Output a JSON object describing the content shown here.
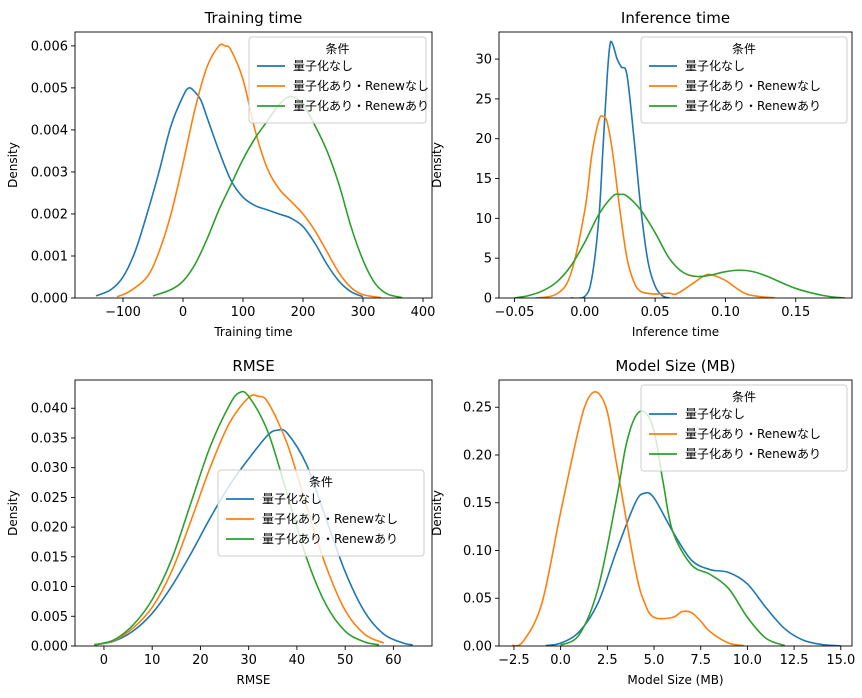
{
  "colors": {
    "series": [
      "#1f77b4",
      "#ff7f0e",
      "#2ca02c"
    ]
  },
  "chart_data": [
    {
      "type": "line",
      "title": "Training time",
      "xlabel": "Training time",
      "ylabel": "Density",
      "xlim": [
        -180,
        415
      ],
      "ylim": [
        0,
        0.00633
      ],
      "xticks": [
        -100,
        0,
        100,
        200,
        300,
        400
      ],
      "xtick_labels": [
        "−100",
        "0",
        "100",
        "200",
        "300",
        "400"
      ],
      "yticks": [
        0,
        0.001,
        0.002,
        0.003,
        0.004,
        0.005,
        0.006
      ],
      "ytick_labels": [
        "0.000",
        "0.001",
        "0.002",
        "0.003",
        "0.004",
        "0.005",
        "0.006"
      ],
      "legend": {
        "title": "条件",
        "placement": "upper-right",
        "labels": [
          "量子化なし",
          "量子化あり・Renewなし",
          "量子化あり・Renewあり"
        ]
      },
      "series": [
        {
          "name": "量子化なし",
          "x": [
            -145,
            -120,
            -100,
            -80,
            -60,
            -40,
            -20,
            0,
            10,
            20,
            30,
            40,
            60,
            80,
            100,
            120,
            140,
            160,
            180,
            200,
            220,
            240,
            260,
            280,
            300
          ],
          "y": [
            5e-05,
            0.0002,
            0.0005,
            0.0011,
            0.002,
            0.003,
            0.0041,
            0.0048,
            0.005,
            0.0049,
            0.0047,
            0.0043,
            0.0035,
            0.0028,
            0.0024,
            0.0022,
            0.0021,
            0.002,
            0.0019,
            0.0017,
            0.0013,
            0.0008,
            0.0004,
            0.00015,
            3e-05
          ]
        },
        {
          "name": "量子化あり・Renewなし",
          "x": [
            -110,
            -90,
            -60,
            -40,
            -20,
            0,
            20,
            40,
            60,
            70,
            80,
            100,
            120,
            140,
            160,
            180,
            200,
            220,
            240,
            260,
            280,
            300,
            330
          ],
          "y": [
            3e-05,
            0.00015,
            0.0005,
            0.0011,
            0.002,
            0.0032,
            0.0045,
            0.0055,
            0.006,
            0.006,
            0.0059,
            0.0052,
            0.004,
            0.0031,
            0.0026,
            0.0023,
            0.002,
            0.0016,
            0.0011,
            0.0006,
            0.00025,
            8e-05,
            1e-05
          ]
        },
        {
          "name": "量子化あり・Renewあり",
          "x": [
            -50,
            -20,
            0,
            20,
            40,
            60,
            80,
            100,
            120,
            140,
            160,
            180,
            200,
            220,
            240,
            260,
            280,
            300,
            320,
            340,
            365
          ],
          "y": [
            5e-05,
            0.0002,
            0.0004,
            0.0008,
            0.0014,
            0.0021,
            0.0027,
            0.0033,
            0.0038,
            0.0042,
            0.0046,
            0.0048,
            0.0046,
            0.0041,
            0.0035,
            0.0027,
            0.0017,
            0.0009,
            0.00035,
            0.0001,
            1e-05
          ]
        }
      ]
    },
    {
      "type": "line",
      "title": "Inference time",
      "xlabel": "Inference time",
      "ylabel": "Density",
      "xlim": [
        -0.061,
        0.19
      ],
      "ylim": [
        0,
        33.4
      ],
      "xticks": [
        -0.05,
        0,
        0.05,
        0.1,
        0.15
      ],
      "xtick_labels": [
        "−0.05",
        "0.00",
        "0.05",
        "0.10",
        "0.15"
      ],
      "yticks": [
        0,
        5,
        10,
        15,
        20,
        25,
        30
      ],
      "ytick_labels": [
        "0",
        "5",
        "10",
        "15",
        "20",
        "25",
        "30"
      ],
      "legend": {
        "title": "条件",
        "placement": "upper-right",
        "labels": [
          "量子化なし",
          "量子化あり・Renewなし",
          "量子化あり・Renewあり"
        ]
      },
      "series": [
        {
          "name": "量子化なし",
          "x": [
            -0.01,
            0.0,
            0.005,
            0.01,
            0.013,
            0.016,
            0.018,
            0.02,
            0.023,
            0.026,
            0.03,
            0.035,
            0.04,
            0.045,
            0.05,
            0.055,
            0.06
          ],
          "y": [
            0,
            0.2,
            2.5,
            10,
            19,
            28,
            31.9,
            31.8,
            30,
            29,
            28,
            20,
            11,
            4.5,
            1.5,
            0.3,
            0
          ]
        },
        {
          "name": "量子化あり・Renewなし",
          "x": [
            -0.035,
            -0.02,
            -0.01,
            0.0,
            0.005,
            0.01,
            0.013,
            0.016,
            0.02,
            0.025,
            0.03,
            0.035,
            0.04,
            0.05,
            0.06,
            0.065,
            0.075,
            0.085,
            0.09,
            0.1,
            0.115,
            0.135
          ],
          "y": [
            0,
            0.5,
            3,
            11,
            18,
            22.3,
            22.8,
            22,
            18,
            11,
            5,
            2,
            0.8,
            0.5,
            0.6,
            0.5,
            1.6,
            2.8,
            2.9,
            2.2,
            0.5,
            0
          ]
        },
        {
          "name": "量子化あり・Renewあり",
          "x": [
            -0.05,
            -0.04,
            -0.03,
            -0.02,
            -0.01,
            0.0,
            0.01,
            0.02,
            0.025,
            0.03,
            0.04,
            0.05,
            0.06,
            0.07,
            0.08,
            0.09,
            0.1,
            0.11,
            0.12,
            0.13,
            0.15,
            0.17,
            0.185
          ],
          "y": [
            0,
            0.3,
            0.9,
            2,
            4,
            7,
            10.5,
            12.8,
            13,
            12.8,
            11,
            8.2,
            5,
            3.2,
            2.7,
            2.9,
            3.3,
            3.5,
            3.3,
            2.7,
            1.2,
            0.3,
            0
          ]
        }
      ]
    },
    {
      "type": "line",
      "title": "RMSE",
      "xlabel": "RMSE",
      "ylabel": "Density",
      "xlim": [
        -6,
        68
      ],
      "ylim": [
        0,
        0.04475
      ],
      "xticks": [
        0,
        10,
        20,
        30,
        40,
        50,
        60
      ],
      "xtick_labels": [
        "0",
        "10",
        "20",
        "30",
        "40",
        "50",
        "60"
      ],
      "yticks": [
        0,
        0.005,
        0.01,
        0.015,
        0.02,
        0.025,
        0.03,
        0.035,
        0.04
      ],
      "ytick_labels": [
        "0.000",
        "0.005",
        "0.010",
        "0.015",
        "0.020",
        "0.025",
        "0.030",
        "0.035",
        "0.040"
      ],
      "legend": {
        "title": "条件",
        "placement": "center-right",
        "labels": [
          "量子化なし",
          "量子化あり・Renewなし",
          "量子化あり・Renewあり"
        ]
      },
      "series": [
        {
          "name": "量子化なし",
          "x": [
            -2,
            2,
            6,
            10,
            14,
            18,
            22,
            26,
            30,
            34,
            36,
            38,
            42,
            46,
            50,
            54,
            58,
            62,
            64
          ],
          "y": [
            0.0002,
            0.0008,
            0.0025,
            0.0055,
            0.01,
            0.0155,
            0.0215,
            0.027,
            0.0315,
            0.0355,
            0.0363,
            0.0358,
            0.0305,
            0.0215,
            0.0125,
            0.0058,
            0.002,
            0.0005,
            0.0002
          ]
        },
        {
          "name": "量子化あり・Renewなし",
          "x": [
            -2,
            2,
            6,
            10,
            14,
            18,
            22,
            26,
            30,
            32,
            34,
            38,
            42,
            46,
            50,
            54,
            58
          ],
          "y": [
            0.0002,
            0.0009,
            0.003,
            0.0065,
            0.0125,
            0.021,
            0.03,
            0.0375,
            0.0418,
            0.042,
            0.041,
            0.034,
            0.0235,
            0.0135,
            0.006,
            0.002,
            0.0005
          ]
        },
        {
          "name": "量子化あり・Renewあり",
          "x": [
            -2,
            2,
            6,
            10,
            14,
            18,
            22,
            26,
            28,
            30,
            34,
            38,
            42,
            46,
            50,
            54,
            57
          ],
          "y": [
            0.0002,
            0.001,
            0.0035,
            0.0078,
            0.0145,
            0.024,
            0.0335,
            0.0405,
            0.0426,
            0.042,
            0.036,
            0.0255,
            0.0148,
            0.007,
            0.0025,
            0.0007,
            0.0002
          ]
        }
      ]
    },
    {
      "type": "line",
      "title": "Model Size (MB)",
      "xlabel": "Model Size (MB)",
      "ylabel": "Density",
      "xlim": [
        -3.3,
        15.6
      ],
      "ylim": [
        0,
        0.2785
      ],
      "xticks": [
        -2.5,
        0,
        2.5,
        5,
        7.5,
        10,
        12.5,
        15
      ],
      "xtick_labels": [
        "−2.5",
        "0.0",
        "2.5",
        "5.0",
        "7.5",
        "10.0",
        "12.5",
        "15.0"
      ],
      "yticks": [
        0,
        0.05,
        0.1,
        0.15,
        0.2,
        0.25
      ],
      "ytick_labels": [
        "0.00",
        "0.05",
        "0.10",
        "0.15",
        "0.20",
        "0.25"
      ],
      "legend": {
        "title": "条件",
        "placement": "upper-right",
        "labels": [
          "量子化なし",
          "量子化あり・Renewなし",
          "量子化あり・Renewあり"
        ]
      },
      "series": [
        {
          "name": "量子化なし",
          "x": [
            -0.8,
            0,
            1,
            2,
            3,
            4,
            4.5,
            5,
            6,
            7,
            8,
            9,
            10,
            11,
            12,
            13,
            14,
            15
          ],
          "y": [
            0.0005,
            0.003,
            0.015,
            0.045,
            0.1,
            0.15,
            0.16,
            0.155,
            0.12,
            0.09,
            0.08,
            0.077,
            0.065,
            0.04,
            0.018,
            0.006,
            0.0015,
            0.0002
          ]
        },
        {
          "name": "量子化あり・Renewなし",
          "x": [
            -2.6,
            -2,
            -1,
            0,
            1,
            1.5,
            2,
            2.5,
            3,
            4,
            4.5,
            5,
            6,
            6.5,
            7,
            7.5,
            8,
            9,
            9.8
          ],
          "y": [
            0.0005,
            0.005,
            0.045,
            0.14,
            0.23,
            0.26,
            0.265,
            0.245,
            0.19,
            0.08,
            0.045,
            0.03,
            0.03,
            0.036,
            0.035,
            0.026,
            0.015,
            0.003,
            0.0005
          ]
        },
        {
          "name": "量子化あり・Renewあり",
          "x": [
            0,
            1,
            2,
            3,
            3.5,
            4,
            4.5,
            5,
            5.5,
            6,
            7,
            8,
            9,
            10,
            11,
            12
          ],
          "y": [
            0.001,
            0.012,
            0.06,
            0.155,
            0.21,
            0.24,
            0.245,
            0.225,
            0.17,
            0.12,
            0.085,
            0.075,
            0.06,
            0.03,
            0.008,
            0.0005
          ]
        }
      ]
    }
  ]
}
